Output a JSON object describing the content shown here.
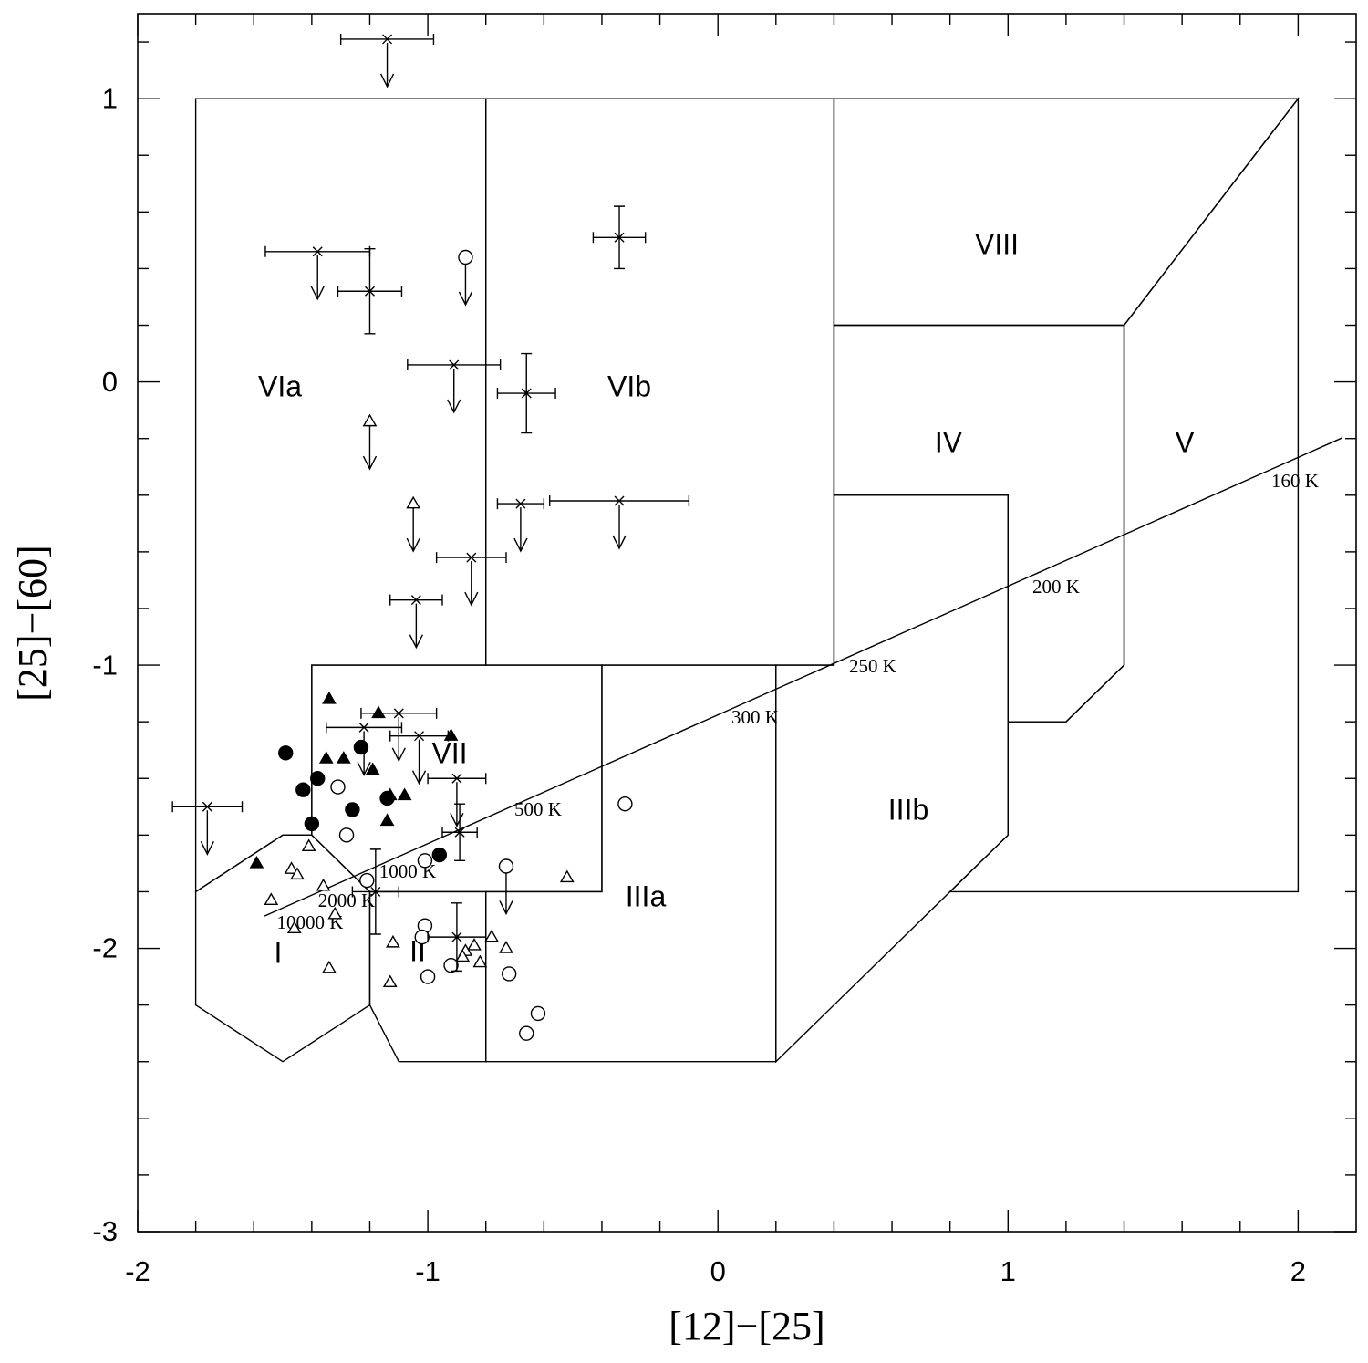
{
  "chart_data": {
    "type": "scatter",
    "xlabel": "[12]−[25]",
    "ylabel": "[25]−[60]",
    "color": "#000000",
    "xlim": [
      -2,
      2.2
    ],
    "ylim": [
      -3,
      1.3
    ],
    "xticks": [
      -2,
      -1,
      0,
      1,
      2
    ],
    "yticks": [
      -3,
      -2,
      -1,
      0,
      1
    ],
    "xminorticks": [
      -1.8,
      -1.6,
      -1.4,
      -1.2,
      -0.8,
      -0.6,
      -0.4,
      -0.2,
      0.2,
      0.4,
      0.6,
      0.8,
      1.2,
      1.4,
      1.6,
      1.8
    ],
    "yminorticks": [
      -2.8,
      -2.6,
      -2.4,
      -2.2,
      -1.8,
      -1.6,
      -1.4,
      -1.2,
      -0.8,
      -0.6,
      -0.4,
      -0.2,
      0.2,
      0.4,
      0.6,
      0.8,
      1.2
    ],
    "regions": [
      {
        "label": "VIa",
        "x": [
          -1.8,
          -0.8,
          -0.8,
          -1.4,
          -1.4,
          -1.5,
          -1.8
        ],
        "y": [
          1,
          1,
          -1,
          -1,
          -1.6,
          -1.6,
          -1.8
        ]
      },
      {
        "label": "VIb",
        "x": [
          -0.8,
          0.4,
          0.4,
          -0.8
        ],
        "y": [
          1,
          1,
          -1,
          -1
        ]
      },
      {
        "label": "VIII",
        "x": [
          0.4,
          2,
          1.4,
          0.4
        ],
        "y": [
          1,
          1,
          0.2,
          0.2
        ]
      },
      {
        "label": "IV",
        "x": [
          0.4,
          1.4,
          1.4,
          1.2,
          1,
          1,
          0.4
        ],
        "y": [
          0.2,
          0.2,
          -1,
          -1.2,
          -1.2,
          -0.4,
          -0.4
        ]
      },
      {
        "label": "V",
        "x": [
          1.4,
          2,
          2,
          0.8,
          1,
          1,
          1.2,
          1.4
        ],
        "y": [
          0.2,
          1,
          -1.8,
          -1.8,
          -1.6,
          -1.2,
          -1.2,
          -1
        ]
      },
      {
        "label": "VII",
        "x": [
          -1.4,
          -0.4,
          -0.4,
          -1.2,
          -1.4
        ],
        "y": [
          -1,
          -1,
          -1.8,
          -1.8,
          -1.6
        ]
      },
      {
        "label": "IIIa",
        "x": [
          -0.8,
          -0.4,
          -0.4,
          0.2,
          0.2,
          -0.8
        ],
        "y": [
          -1.8,
          -1.8,
          -1,
          -1,
          -2.4,
          -2.4
        ]
      },
      {
        "label": "IIIb",
        "x": [
          0.2,
          0.4,
          0.4,
          1,
          1,
          0.2
        ],
        "y": [
          -1,
          -1,
          -0.4,
          -0.4,
          -1.6,
          -2.4
        ]
      },
      {
        "label": "I",
        "x": [
          -1.8,
          -1.5,
          -1.4,
          -1.2,
          -1.2,
          -1.5,
          -1.8
        ],
        "y": [
          -1.8,
          -1.6,
          -1.6,
          -1.8,
          -2.2,
          -2.4,
          -2.2
        ]
      },
      {
        "label": "II",
        "x": [
          -1.2,
          -0.8,
          -0.8,
          -1.1,
          -1.2
        ],
        "y": [
          -1.8,
          -1.8,
          -2.4,
          -2.4,
          -2.2
        ]
      }
    ],
    "blackbody": {
      "x": [
        -1.563,
        2.151
      ],
      "y": [
        -1.886,
        -0.198
      ],
      "labels": [
        "160 K",
        "200 K",
        "250 K",
        "300 K",
        "500 K",
        "1000 K",
        "2000 K",
        "10000 K"
      ]
    },
    "series": [
      {
        "marker": "filled-circle",
        "x": [
          -1.49,
          -1.43,
          -1.38,
          -1.4,
          -1.23,
          -1.26,
          -1.14,
          -0.96
        ],
        "y": [
          -1.31,
          -1.44,
          -1.4,
          -1.56,
          -1.29,
          -1.51,
          -1.47,
          -1.67
        ]
      },
      {
        "marker": "open-circle",
        "x": [
          -0.87,
          -1.31,
          -1.28,
          -1.01,
          -1.21,
          -0.73,
          -0.32,
          -1.01,
          -1.02,
          -1.0,
          -0.92,
          -0.72,
          -0.62,
          -0.66
        ],
        "y": [
          0.44,
          -1.43,
          -1.6,
          -1.69,
          -1.76,
          -1.71,
          -1.49,
          -1.92,
          -1.96,
          -2.1,
          -2.06,
          -2.09,
          -2.23,
          -2.3
        ],
        "upper_limit": [
          true,
          false,
          false,
          false,
          false,
          true,
          false,
          false,
          false,
          false,
          false,
          false,
          false,
          false
        ]
      },
      {
        "marker": "filled-triangle",
        "x": [
          -1.34,
          -1.17,
          -1.35,
          -1.29,
          -1.19,
          -1.13,
          -1.08,
          -1.14,
          -1.59,
          -0.92
        ],
        "y": [
          -1.12,
          -1.17,
          -1.33,
          -1.33,
          -1.37,
          -1.46,
          -1.46,
          -1.55,
          -1.7,
          -1.25
        ]
      },
      {
        "marker": "open-triangle",
        "x": [
          -1.41,
          -1.47,
          -1.45,
          -1.54,
          -1.46,
          -1.36,
          -1.32,
          -1.34,
          -1.12,
          -1.13,
          -0.78,
          -0.73,
          -0.84,
          -0.87,
          -0.88,
          -0.82,
          -0.52,
          -1.2,
          -1.05
        ],
        "y": [
          -1.64,
          -1.72,
          -1.74,
          -1.83,
          -1.93,
          -1.78,
          -1.88,
          -2.07,
          -1.98,
          -2.12,
          -1.96,
          -2.0,
          -1.99,
          -2.01,
          -2.03,
          -2.05,
          -1.75,
          -0.14,
          -0.43
        ],
        "upper_limit": [
          false,
          false,
          false,
          false,
          false,
          false,
          false,
          false,
          false,
          false,
          false,
          false,
          false,
          false,
          false,
          false,
          false,
          true,
          true
        ]
      },
      {
        "marker": "cross",
        "x": [
          -1.14,
          -1.38,
          -1.2,
          -0.34,
          -0.91,
          -0.66,
          -0.68,
          -0.34,
          -0.85,
          -1.04,
          -1.76,
          -1.1,
          -1.22,
          -1.03,
          -0.9,
          -0.89,
          -1.18,
          -0.9
        ],
        "y": [
          1.21,
          0.46,
          0.32,
          0.51,
          0.06,
          -0.04,
          -0.43,
          -0.42,
          -0.62,
          -0.77,
          -1.5,
          -1.17,
          -1.22,
          -1.25,
          -1.4,
          -1.59,
          -1.8,
          -1.96
        ],
        "xerr": [
          0.16,
          0.18,
          0.11,
          0.09,
          0.16,
          0.1,
          0.08,
          0.24,
          0.12,
          0.09,
          0.12,
          0.13,
          0.13,
          0.1,
          0.1,
          0.06,
          0.08,
          0.1
        ],
        "yerr": [
          null,
          null,
          0.15,
          0.11,
          null,
          0.14,
          null,
          null,
          null,
          null,
          null,
          null,
          null,
          null,
          null,
          0.1,
          0.15,
          0.12
        ],
        "upper_limit": [
          true,
          true,
          false,
          false,
          true,
          false,
          true,
          true,
          true,
          true,
          true,
          true,
          true,
          true,
          true,
          false,
          false,
          false
        ]
      }
    ]
  }
}
